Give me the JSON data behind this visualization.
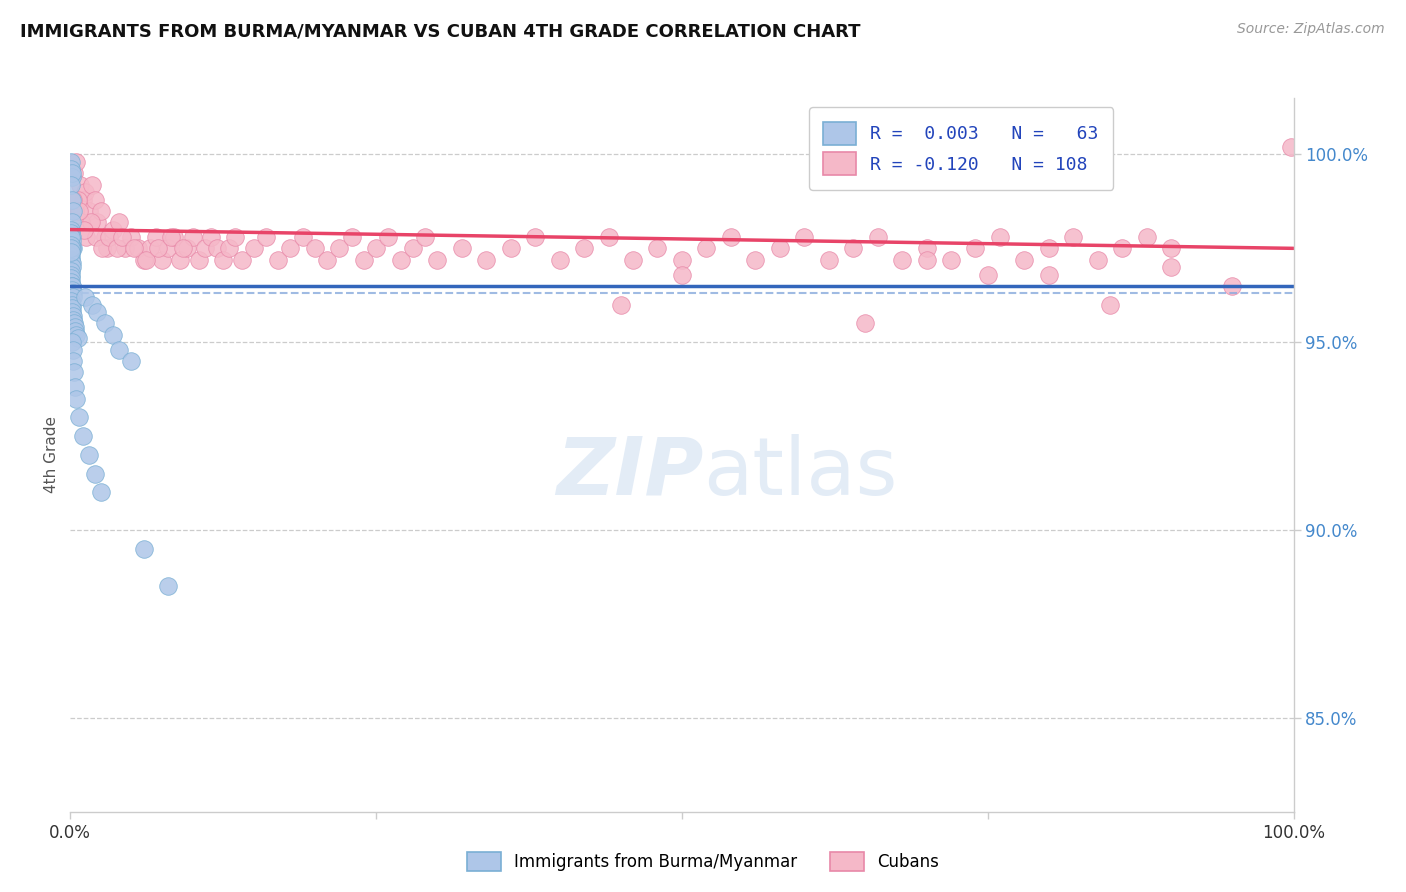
{
  "title": "IMMIGRANTS FROM BURMA/MYANMAR VS CUBAN 4TH GRADE CORRELATION CHART",
  "source": "Source: ZipAtlas.com",
  "ylabel": "4th Grade",
  "ylabel_right_ticks": [
    85.0,
    90.0,
    95.0,
    100.0
  ],
  "ylabel_right_labels": [
    "85.0%",
    "90.0%",
    "95.0%",
    "100.0%"
  ],
  "xmin": 0.0,
  "xmax": 100.0,
  "ymin": 82.5,
  "ymax": 101.5,
  "blue_color": "#aec6e8",
  "pink_color": "#f5b8c8",
  "blue_edge_color": "#7aafd4",
  "pink_edge_color": "#e888a8",
  "blue_line_color": "#3366bb",
  "pink_line_color": "#e84468",
  "blue_dashed_color": "#88aadd",
  "r_blue": 0.003,
  "r_pink": -0.12,
  "n_blue": 63,
  "n_pink": 108,
  "blue_trend_start_y": 96.5,
  "blue_trend_end_y": 96.5,
  "blue_dash_y": 96.3,
  "pink_trend_start_y": 98.0,
  "pink_trend_end_y": 97.5,
  "blue_scatter_x": [
    0.05,
    0.08,
    0.1,
    0.12,
    0.08,
    0.15,
    0.2,
    0.1,
    0.05,
    0.07,
    0.12,
    0.15,
    0.18,
    0.1,
    0.08,
    0.06,
    0.09,
    0.11,
    0.13,
    0.07,
    0.05,
    0.06,
    0.08,
    0.1,
    0.12,
    0.15,
    0.2,
    0.25,
    0.08,
    0.1,
    0.12,
    0.15,
    0.18,
    0.22,
    0.28,
    0.35,
    0.42,
    0.5,
    0.6,
    0.15,
    0.2,
    0.25,
    0.3,
    0.4,
    0.5,
    0.7,
    1.0,
    1.5,
    2.0,
    2.5,
    1.2,
    1.8,
    2.2,
    2.8,
    3.5,
    4.0,
    5.0,
    6.0,
    8.0,
    0.05,
    0.06,
    0.07,
    0.09
  ],
  "blue_scatter_y": [
    99.8,
    99.6,
    99.4,
    99.5,
    99.2,
    98.8,
    98.5,
    98.2,
    98.0,
    97.9,
    97.8,
    97.7,
    97.5,
    97.5,
    97.4,
    97.3,
    97.2,
    97.1,
    97.0,
    96.9,
    96.8,
    96.7,
    96.6,
    96.5,
    96.5,
    96.4,
    96.3,
    96.2,
    96.1,
    96.0,
    95.9,
    95.8,
    95.7,
    95.6,
    95.5,
    95.4,
    95.3,
    95.2,
    95.1,
    95.0,
    94.8,
    94.5,
    94.2,
    93.8,
    93.5,
    93.0,
    92.5,
    92.0,
    91.5,
    91.0,
    96.2,
    96.0,
    95.8,
    95.5,
    95.2,
    94.8,
    94.5,
    89.5,
    88.5,
    97.8,
    97.6,
    97.5,
    97.4
  ],
  "pink_scatter_x": [
    0.3,
    0.5,
    0.8,
    1.0,
    1.2,
    1.5,
    1.8,
    2.0,
    2.2,
    2.5,
    2.8,
    3.0,
    3.5,
    4.0,
    4.5,
    5.0,
    5.5,
    6.0,
    6.5,
    7.0,
    7.5,
    8.0,
    8.5,
    9.0,
    9.5,
    10.0,
    10.5,
    11.0,
    11.5,
    12.0,
    12.5,
    13.0,
    13.5,
    14.0,
    15.0,
    16.0,
    17.0,
    18.0,
    19.0,
    20.0,
    21.0,
    22.0,
    23.0,
    24.0,
    25.0,
    26.0,
    27.0,
    28.0,
    29.0,
    30.0,
    32.0,
    34.0,
    36.0,
    38.0,
    40.0,
    42.0,
    44.0,
    46.0,
    48.0,
    50.0,
    52.0,
    54.0,
    56.0,
    58.0,
    60.0,
    62.0,
    64.0,
    66.0,
    68.0,
    70.0,
    72.0,
    74.0,
    76.0,
    78.0,
    80.0,
    82.0,
    84.0,
    86.0,
    88.0,
    90.0,
    0.4,
    0.6,
    0.9,
    1.3,
    1.7,
    2.1,
    2.6,
    3.2,
    3.8,
    4.2,
    5.2,
    6.2,
    7.2,
    8.2,
    9.2,
    0.2,
    0.7,
    1.1,
    50.0,
    70.0,
    80.0,
    90.0,
    95.0,
    85.0,
    75.0,
    65.0,
    45.0,
    99.8
  ],
  "pink_scatter_y": [
    99.5,
    99.8,
    99.2,
    98.8,
    99.0,
    98.5,
    99.2,
    98.8,
    98.2,
    98.5,
    97.8,
    97.5,
    98.0,
    98.2,
    97.5,
    97.8,
    97.5,
    97.2,
    97.5,
    97.8,
    97.2,
    97.5,
    97.8,
    97.2,
    97.5,
    97.8,
    97.2,
    97.5,
    97.8,
    97.5,
    97.2,
    97.5,
    97.8,
    97.2,
    97.5,
    97.8,
    97.2,
    97.5,
    97.8,
    97.5,
    97.2,
    97.5,
    97.8,
    97.2,
    97.5,
    97.8,
    97.2,
    97.5,
    97.8,
    97.2,
    97.5,
    97.2,
    97.5,
    97.8,
    97.2,
    97.5,
    97.8,
    97.2,
    97.5,
    97.2,
    97.5,
    97.8,
    97.2,
    97.5,
    97.8,
    97.2,
    97.5,
    97.8,
    97.2,
    97.5,
    97.2,
    97.5,
    97.8,
    97.2,
    97.5,
    97.8,
    97.2,
    97.5,
    97.8,
    97.5,
    98.5,
    98.8,
    98.2,
    97.8,
    98.2,
    97.8,
    97.5,
    97.8,
    97.5,
    97.8,
    97.5,
    97.2,
    97.5,
    97.8,
    97.5,
    98.8,
    98.5,
    98.0,
    96.8,
    97.2,
    96.8,
    97.0,
    96.5,
    96.0,
    96.8,
    95.5,
    96.0,
    100.2
  ]
}
